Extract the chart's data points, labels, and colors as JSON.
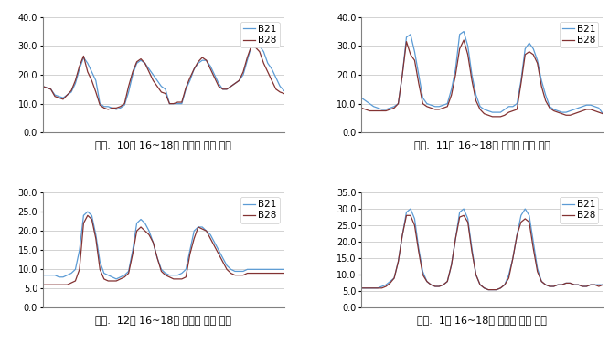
{
  "title_fontsize": 8,
  "legend_fontsize": 7.5,
  "tick_fontsize": 7,
  "line_color_b21": "#5B9BD5",
  "line_color_b28": "#833232",
  "background": "#FFFFFF",
  "panels": [
    {
      "title": "그림.  10월 16~18일 사이의 기온 변화",
      "ylim": [
        0,
        40
      ],
      "yticks": [
        0.0,
        10.0,
        20.0,
        30.0,
        40.0
      ],
      "b21": [
        16,
        15.5,
        15,
        13,
        12.5,
        12,
        13,
        14,
        17,
        22,
        26,
        24,
        21,
        18,
        10,
        9,
        9,
        8.5,
        8,
        8.5,
        9.5,
        14,
        20,
        24,
        25,
        24,
        22,
        20,
        18,
        16,
        15,
        10,
        10,
        10,
        10,
        15,
        18,
        22,
        24,
        25,
        25,
        23,
        20,
        17,
        15,
        15,
        16,
        17,
        18,
        20,
        25,
        30,
        31,
        30,
        28,
        24,
        22,
        19,
        16,
        14.5
      ],
      "b28": [
        16,
        15.5,
        15,
        12.5,
        12,
        11.5,
        13,
        14.5,
        18,
        23,
        26.5,
        21,
        18,
        14,
        9.5,
        8.5,
        8,
        8.5,
        8.5,
        9,
        10,
        16,
        21,
        24.5,
        25.5,
        24,
        21,
        18,
        16,
        14,
        13.5,
        10,
        10,
        10.5,
        10.5,
        15.5,
        19,
        22,
        24.5,
        26,
        25,
        22,
        19,
        16,
        15,
        15,
        16,
        17,
        18,
        21,
        26,
        30,
        29.5,
        28,
        24,
        21,
        18,
        15,
        14,
        13.5
      ]
    },
    {
      "title": "그림.  11월 16~18일 사이의 기온 변화",
      "ylim": [
        0,
        40
      ],
      "yticks": [
        0.0,
        10.0,
        20.0,
        30.0,
        40.0
      ],
      "b21": [
        12,
        11,
        10,
        9,
        8.5,
        8,
        8,
        8.5,
        9,
        10,
        20,
        33,
        34,
        28,
        20,
        12,
        10,
        9.5,
        9,
        9,
        9.5,
        10,
        15,
        22,
        34,
        35,
        30,
        20,
        13,
        9,
        8,
        7.5,
        7,
        7,
        7,
        8,
        9,
        9,
        10,
        18,
        29,
        31,
        29,
        25,
        18,
        13,
        9,
        8,
        7.5,
        7,
        7,
        7.5,
        8,
        8.5,
        9,
        9.5,
        9.5,
        9,
        8.5,
        6.5
      ],
      "b28": [
        8.5,
        8,
        7.5,
        7.5,
        7.5,
        7.5,
        7.5,
        8,
        8.5,
        10,
        20,
        31.5,
        27,
        25,
        17,
        10,
        9,
        8.5,
        8,
        8,
        8.5,
        9,
        13,
        20,
        29,
        32,
        27,
        18,
        11,
        8,
        6.5,
        6,
        5.5,
        5.5,
        5.5,
        6,
        7,
        7.5,
        8,
        17,
        27,
        28,
        27,
        24,
        16,
        11,
        8.5,
        7.5,
        7,
        6.5,
        6,
        6,
        6.5,
        7,
        7.5,
        8,
        8,
        7.5,
        7,
        6.5
      ]
    },
    {
      "title": "그림.  12월 16~18일 사이의 기온 변화",
      "ylim": [
        0,
        30
      ],
      "yticks": [
        0.0,
        5.0,
        10.0,
        15.0,
        20.0,
        25.0,
        30.0
      ],
      "b21": [
        8.5,
        8.5,
        8.5,
        8.5,
        8,
        8,
        8.5,
        9,
        10,
        15,
        24,
        25,
        24,
        19,
        12,
        9,
        8.5,
        8,
        7.5,
        8,
        8.5,
        9.5,
        15,
        22,
        23,
        22,
        20,
        17,
        13,
        10,
        9,
        8.5,
        8.5,
        8.5,
        9,
        10,
        15,
        20,
        21,
        21,
        20,
        19,
        17,
        15,
        13,
        11,
        10,
        9.5,
        9.5,
        9.5,
        10,
        10,
        10,
        10,
        10,
        10,
        10,
        10,
        10,
        10
      ],
      "b28": [
        6,
        6,
        6,
        6,
        6,
        6,
        6,
        6.5,
        7,
        10,
        22,
        24,
        23,
        18,
        10,
        7.5,
        7,
        7,
        7,
        7.5,
        8,
        9,
        14,
        20,
        21,
        20,
        19,
        17,
        13,
        9.5,
        8.5,
        8,
        7.5,
        7.5,
        7.5,
        8,
        14,
        18,
        21,
        20.5,
        20,
        18,
        16,
        14,
        12,
        10,
        9,
        8.5,
        8.5,
        8.5,
        9,
        9,
        9,
        9,
        9,
        9,
        9,
        9,
        9,
        9
      ]
    },
    {
      "title": "그림.  1월 16~18일 사이의 기온 변화",
      "ylim": [
        0,
        35
      ],
      "yticks": [
        0.0,
        5.0,
        10.0,
        15.0,
        20.0,
        25.0,
        30.0,
        35.0
      ],
      "b21": [
        6,
        6,
        6,
        6,
        6,
        6.5,
        7,
        8,
        9,
        14,
        22,
        29,
        30,
        27,
        18,
        11,
        8,
        7,
        6.5,
        6.5,
        7,
        8,
        13,
        21,
        29,
        30,
        27,
        18,
        10,
        7,
        6,
        5.5,
        5.5,
        5.5,
        6,
        7,
        10,
        15,
        22,
        28,
        30,
        28,
        20,
        12,
        8,
        7,
        6.5,
        6.5,
        7,
        7,
        7.5,
        7.5,
        7,
        7,
        6.5,
        6.5,
        7,
        7,
        7,
        7
      ],
      "b28": [
        6,
        6,
        6,
        6,
        6,
        6,
        6.5,
        7.5,
        9,
        14,
        22,
        28,
        28,
        25,
        17,
        10,
        8,
        7,
        6.5,
        6.5,
        7,
        8,
        13,
        21,
        27.5,
        28,
        26,
        17,
        10,
        7,
        6,
        5.5,
        5.5,
        5.5,
        6,
        7,
        9,
        15,
        22,
        26,
        27,
        26,
        18,
        11,
        8,
        7,
        6.5,
        6.5,
        7,
        7,
        7.5,
        7.5,
        7,
        7,
        6.5,
        6.5,
        7,
        7,
        6.5,
        7
      ]
    }
  ]
}
